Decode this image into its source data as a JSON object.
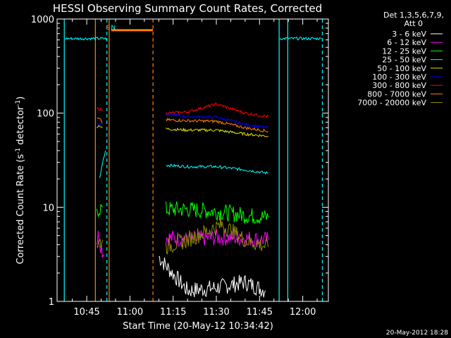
{
  "chart_data": {
    "type": "line",
    "title": "HESSI Observing Summary Count Rates, Corrected",
    "xlabel": "Start Time (20-May-12 10:34:42)",
    "ylabel_main": "Corrected Count Rate (s",
    "ylabel_sup1": "-1",
    "ylabel_mid": " detector",
    "ylabel_sup2": "-1",
    "ylabel_end": ")",
    "yscale": "log",
    "ylim": [
      1,
      1000
    ],
    "xlim_min": [
      34.7,
      128.9
    ],
    "x_ticks": [
      {
        "m": 45,
        "label": "10:45"
      },
      {
        "m": 60,
        "label": "11:00"
      },
      {
        "m": 75,
        "label": "11:15"
      },
      {
        "m": 90,
        "label": "11:30"
      },
      {
        "m": 105,
        "label": "11:45"
      },
      {
        "m": 120,
        "label": "12:00"
      }
    ],
    "y_ticks": [
      {
        "v": 1,
        "label": "1"
      },
      {
        "v": 10,
        "label": "10"
      },
      {
        "v": 100,
        "label": "100"
      },
      {
        "v": 1000,
        "label": "1000"
      }
    ],
    "legend_header": [
      "Det 1,3,5,6,7,9,",
      "Att 0"
    ],
    "legend_position": "right",
    "series": [
      {
        "name": "3 - 6 keV",
        "color": "#ffffff",
        "segments": [
          [
            [
              70,
              3
            ],
            [
              72,
              2.5
            ],
            [
              80,
              1.3
            ],
            [
              90,
              1.4
            ],
            [
              100,
              1.6
            ],
            [
              107,
              1.3
            ]
          ]
        ]
      },
      {
        "name": "6 - 12 keV",
        "color": "#ff00ff",
        "segments": [
          [
            [
              48.5,
              4.5
            ],
            [
              49,
              5
            ],
            [
              51,
              3
            ]
          ],
          [
            [
              72.5,
              4.8
            ],
            [
              80,
              4.5
            ],
            [
              90,
              4.8
            ],
            [
              100,
              4.7
            ],
            [
              108,
              4.5
            ]
          ]
        ]
      },
      {
        "name": "12 - 25 keV",
        "color": "#00ff00",
        "segments": [
          [
            [
              48.5,
              8.5
            ],
            [
              49,
              9.5
            ],
            [
              50.5,
              10
            ]
          ],
          [
            [
              72.5,
              9.5
            ],
            [
              80,
              9.5
            ],
            [
              90,
              9.0
            ],
            [
              100,
              8.2
            ],
            [
              108,
              7.8
            ]
          ]
        ]
      },
      {
        "name": "25 - 50 keV",
        "color": "#00ffff",
        "segments": [
          [
            [
              37.5,
              620
            ],
            [
              52,
              620
            ]
          ],
          [
            [
              49.5,
              20
            ],
            [
              50.5,
              30
            ],
            [
              51.5,
              40
            ]
          ],
          [
            [
              72.5,
              28
            ],
            [
              80,
              27
            ],
            [
              90,
              27
            ],
            [
              100,
              25
            ],
            [
              108,
              23
            ]
          ],
          [
            [
              112,
              620
            ],
            [
              126.5,
              620
            ]
          ]
        ]
      },
      {
        "name": "50 - 100 keV",
        "color": "#e0e000",
        "segments": [
          [
            [
              48.5,
              72
            ],
            [
              49.5,
              74
            ],
            [
              50.5,
              70
            ]
          ],
          [
            [
              72.5,
              68
            ],
            [
              80,
              66
            ],
            [
              90,
              66
            ],
            [
              100,
              60
            ],
            [
              108,
              57
            ]
          ]
        ]
      },
      {
        "name": "100 - 300 keV",
        "color": "#0000ff",
        "segments": [
          [
            [
              48.5,
              80
            ],
            [
              49.5,
              78
            ],
            [
              50.5,
              76
            ]
          ],
          [
            [
              72.5,
              98
            ],
            [
              80,
              92
            ],
            [
              90,
              91
            ],
            [
              100,
              76
            ],
            [
              108,
              70
            ]
          ]
        ]
      },
      {
        "name": "300 - 800 keV",
        "color": "#ff0000",
        "segments": [
          [
            [
              48.5,
              112
            ],
            [
              49.5,
              110
            ],
            [
              50.5,
              108
            ]
          ],
          [
            [
              72.5,
              100
            ],
            [
              80,
              103
            ],
            [
              90,
              125
            ],
            [
              100,
              100
            ],
            [
              108,
              92
            ]
          ]
        ]
      },
      {
        "name": "800 - 7000 keV",
        "color": "#ff8000",
        "segments": [
          [
            [
              48.5,
              88
            ],
            [
              49.5,
              86
            ],
            [
              50.5,
              80
            ]
          ],
          [
            [
              72.5,
              85
            ],
            [
              80,
              83
            ],
            [
              90,
              82
            ],
            [
              100,
              70
            ],
            [
              108,
              64
            ]
          ]
        ]
      },
      {
        "name": "7000 - 20000 keV",
        "color": "#909000",
        "segments": [
          [
            [
              48.5,
              4.0
            ],
            [
              50.5,
              4.5
            ]
          ],
          [
            [
              72.5,
              3.8
            ],
            [
              80,
              4.5
            ],
            [
              88,
              5.8
            ],
            [
              92,
              6.5
            ],
            [
              100,
              4.5
            ],
            [
              108,
              3.8
            ]
          ]
        ]
      }
    ],
    "vertical_markers": [
      {
        "m": 37.2,
        "color": "#00ffff",
        "style": "solid"
      },
      {
        "m": 48.0,
        "color": "#ff8000",
        "style": "solid"
      },
      {
        "m": 52.0,
        "color": "#00ffff",
        "style": "dashed"
      },
      {
        "m": 52.8,
        "color": "#ff8000",
        "style": "solid"
      },
      {
        "m": 68.0,
        "color": "#ff8000",
        "style": "dashed"
      },
      {
        "m": 111.8,
        "color": "#00ffff",
        "style": "solid"
      },
      {
        "m": 114.8,
        "color": "#00ffff",
        "style": "solid"
      },
      {
        "m": 126.8,
        "color": "#00ffff",
        "style": "dashed"
      }
    ],
    "saa_bar": {
      "from": 53.5,
      "to": 68.0,
      "value": 760,
      "color": "#ff8000"
    },
    "flags": [
      {
        "label": "S",
        "m": 52.4,
        "color": "#ff8000"
      },
      {
        "label": "N",
        "m": 54.2,
        "color": "#00ffff"
      }
    ]
  },
  "footer_date": "20-May-2012 18:28"
}
